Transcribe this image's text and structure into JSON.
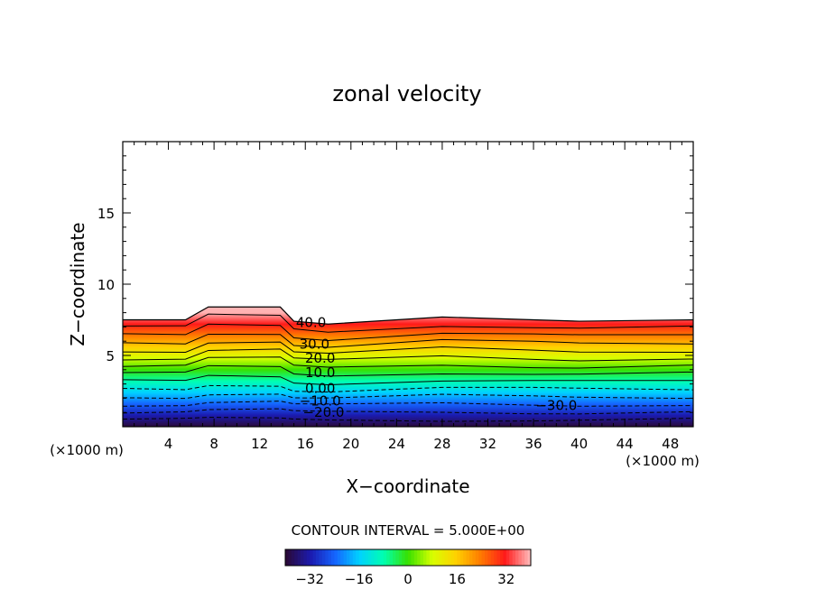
{
  "chart_data": {
    "type": "heatmap",
    "title": "zonal velocity",
    "xlabel": "X−coordinate",
    "ylabel": "Z−coordinate",
    "x_unit_left": "(×1000 m)",
    "x_unit_right": "(×1000 m)",
    "xlim": [
      0,
      50
    ],
    "ylim": [
      0,
      20
    ],
    "x_ticks": [
      4,
      8,
      12,
      16,
      20,
      24,
      28,
      32,
      36,
      40,
      44,
      48
    ],
    "y_ticks": [
      5,
      10,
      15
    ],
    "field_top_profile": {
      "x": [
        0,
        5.5,
        7.5,
        13.8,
        15,
        18,
        28,
        36,
        40,
        50
      ],
      "z": [
        7.5,
        7.5,
        8.4,
        8.4,
        7.4,
        7.2,
        7.7,
        7.5,
        7.4,
        7.5
      ]
    },
    "contour_labels": [
      {
        "text": "40.0",
        "x": 16.5,
        "z": 7.3
      },
      {
        "text": "30.0",
        "x": 16.8,
        "z": 5.8
      },
      {
        "text": "20.0",
        "x": 17.3,
        "z": 4.8
      },
      {
        "text": "10.0",
        "x": 17.3,
        "z": 3.8
      },
      {
        "text": "0.00",
        "x": 17.3,
        "z": 2.7
      },
      {
        "text": "−10.0",
        "x": 17.3,
        "z": 1.8
      },
      {
        "text": "−20.0",
        "x": 17.6,
        "z": 1.0
      },
      {
        "text": "−30.0",
        "x": 38.0,
        "z": 1.5
      }
    ],
    "contour_interval_text": "CONTOUR INTERVAL = 5.000E+00",
    "colorbar": {
      "min": -40,
      "max": 40,
      "tick_labels": [
        "−32",
        "−16",
        "0",
        "16",
        "32"
      ],
      "tick_values": [
        -32,
        -16,
        0,
        16,
        32
      ],
      "color_stops": [
        "#2a0a3a",
        "#1b1bb0",
        "#1565ff",
        "#00d2ff",
        "#00ffb0",
        "#38e000",
        "#d8ff00",
        "#ffd000",
        "#ff7a00",
        "#ff1a1a",
        "#ffb3b3"
      ]
    }
  }
}
